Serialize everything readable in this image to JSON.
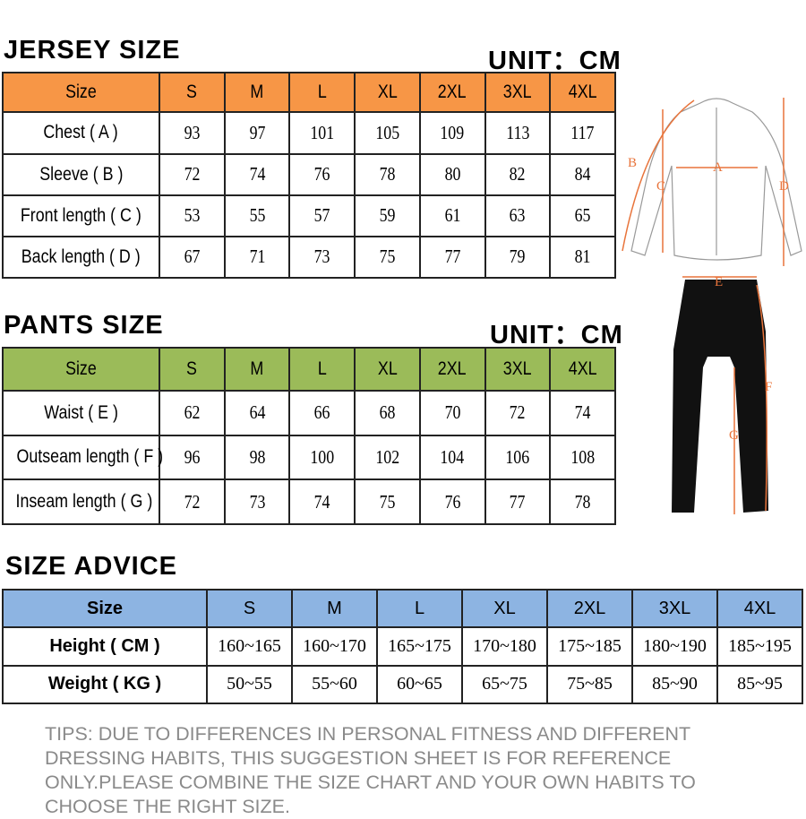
{
  "jersey": {
    "title": "JERSEY SIZE",
    "unit": "UNIT：CM",
    "header_color": "#f79646",
    "header": [
      "Size",
      "S",
      "M",
      "L",
      "XL",
      "2XL",
      "3XL",
      "4XL"
    ],
    "rows": [
      [
        "Chest ( A )",
        "93",
        "97",
        "101",
        "105",
        "109",
        "113",
        "117"
      ],
      [
        "Sleeve ( B )",
        "72",
        "74",
        "76",
        "78",
        "80",
        "82",
        "84"
      ],
      [
        "Front length ( C )",
        "53",
        "55",
        "57",
        "59",
        "61",
        "63",
        "65"
      ],
      [
        "Back length ( D )",
        "67",
        "71",
        "73",
        "75",
        "77",
        "79",
        "81"
      ]
    ]
  },
  "pants": {
    "title": "PANTS SIZE",
    "unit": "UNIT：CM",
    "header_color": "#9bbb59",
    "header": [
      "Size",
      "S",
      "M",
      "L",
      "XL",
      "2XL",
      "3XL",
      "4XL"
    ],
    "rows": [
      [
        "Waist ( E )",
        "62",
        "64",
        "66",
        "68",
        "70",
        "72",
        "74"
      ],
      [
        "Outseam length ( F )",
        "96",
        "98",
        "100",
        "102",
        "104",
        "106",
        "108"
      ],
      [
        "Inseam length ( G )",
        "72",
        "73",
        "74",
        "75",
        "76",
        "77",
        "78"
      ]
    ]
  },
  "advice": {
    "title": "SIZE ADVICE",
    "header_color": "#8db4e2",
    "header": [
      "Size",
      "S",
      "M",
      "L",
      "XL",
      "2XL",
      "3XL",
      "4XL"
    ],
    "rows": [
      [
        "Height ( CM )",
        "160~165",
        "160~170",
        "165~175",
        "170~180",
        "175~185",
        "180~190",
        "185~195"
      ],
      [
        "Weight ( KG )",
        "50~55",
        "55~60",
        "60~65",
        "65~75",
        "75~85",
        "85~90",
        "85~95"
      ]
    ]
  },
  "diagram": {
    "labels": [
      "A",
      "B",
      "C",
      "D",
      "E",
      "F",
      "G"
    ],
    "accent": "#e8743b"
  },
  "tips": "TIPS: DUE TO DIFFERENCES IN PERSONAL FITNESS AND DIFFERENT DRESSING HABITS, THIS SUGGESTION SHEET IS FOR REFERENCE ONLY.PLEASE COMBINE THE SIZE CHART AND YOUR OWN HABITS TO CHOOSE THE RIGHT SIZE."
}
